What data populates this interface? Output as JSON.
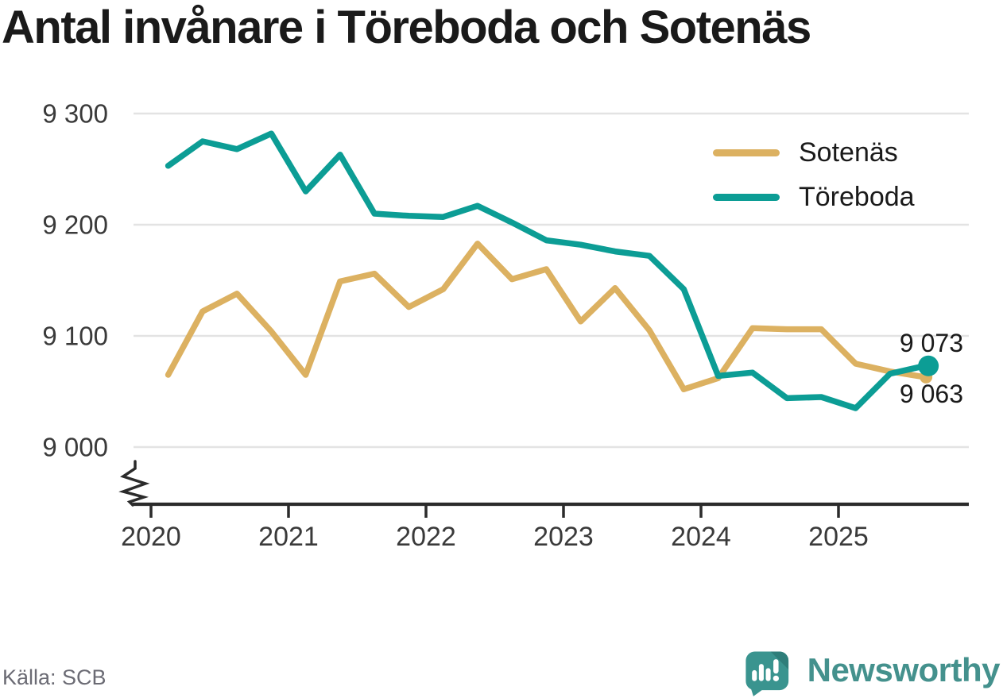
{
  "title": "Antal invånare i Töreboda och Sotenäs",
  "source_label": "Källa: SCB",
  "branding": {
    "wordmark": "Newsworthy",
    "brand_color": "#44918D",
    "icon": "newsworthy-speech-bubble-bar-chart-icon"
  },
  "legend": {
    "position": "top-right",
    "items": [
      {
        "label": "Sotenäs",
        "color": "#DCB161"
      },
      {
        "label": "Töreboda",
        "color": "#0C9D95"
      }
    ]
  },
  "colors": {
    "grid": "#E3E3E3",
    "axis": "#2B2B2B",
    "tick_text": "#3A3A3A",
    "annotation_text": "#1A1A1A",
    "source_text": "#6B6B74",
    "background": "#FFFFFF"
  },
  "chart_data": {
    "type": "line",
    "title": "Antal invånare i Töreboda och Sotenäs",
    "x_period": "quarterly",
    "x": [
      2020.125,
      2020.375,
      2020.625,
      2020.875,
      2021.125,
      2021.375,
      2021.625,
      2021.875,
      2022.125,
      2022.375,
      2022.625,
      2022.875,
      2023.125,
      2023.375,
      2023.625,
      2023.875,
      2024.125,
      2024.375,
      2024.625,
      2024.875,
      2025.125,
      2025.375,
      2025.625
    ],
    "series": [
      {
        "name": "Sotenäs",
        "color": "#DCB161",
        "values": [
          9065,
          9122,
          9138,
          9104,
          9065,
          9149,
          9156,
          9126,
          9142,
          9183,
          9151,
          9160,
          9113,
          9143,
          9105,
          9052,
          9062,
          9107,
          9106,
          9106,
          9075,
          9068,
          9063
        ],
        "end_label": "9 063",
        "end_dot_radius": 8
      },
      {
        "name": "Töreboda",
        "color": "#0C9D95",
        "values": [
          9253,
          9275,
          9268,
          9282,
          9230,
          9263,
          9210,
          9208,
          9207,
          9217,
          9202,
          9186,
          9182,
          9176,
          9172,
          9142,
          9064,
          9067,
          9044,
          9045,
          9035,
          9066,
          9073
        ],
        "end_label": "9 073",
        "end_dot_radius": 13
      }
    ],
    "yticks": [
      9000,
      9100,
      9200,
      9300
    ],
    "ytick_labels": [
      "9 000",
      "9 100",
      "9 200",
      "9 300"
    ],
    "xticks": [
      2020,
      2021,
      2022,
      2023,
      2024,
      2025
    ],
    "xtick_labels": [
      "2020",
      "2021",
      "2022",
      "2023",
      "2024",
      "2025"
    ],
    "ylim": [
      9000,
      9300
    ],
    "y_axis_break": true,
    "grid": "horizontal",
    "legend_position": "top-right"
  }
}
